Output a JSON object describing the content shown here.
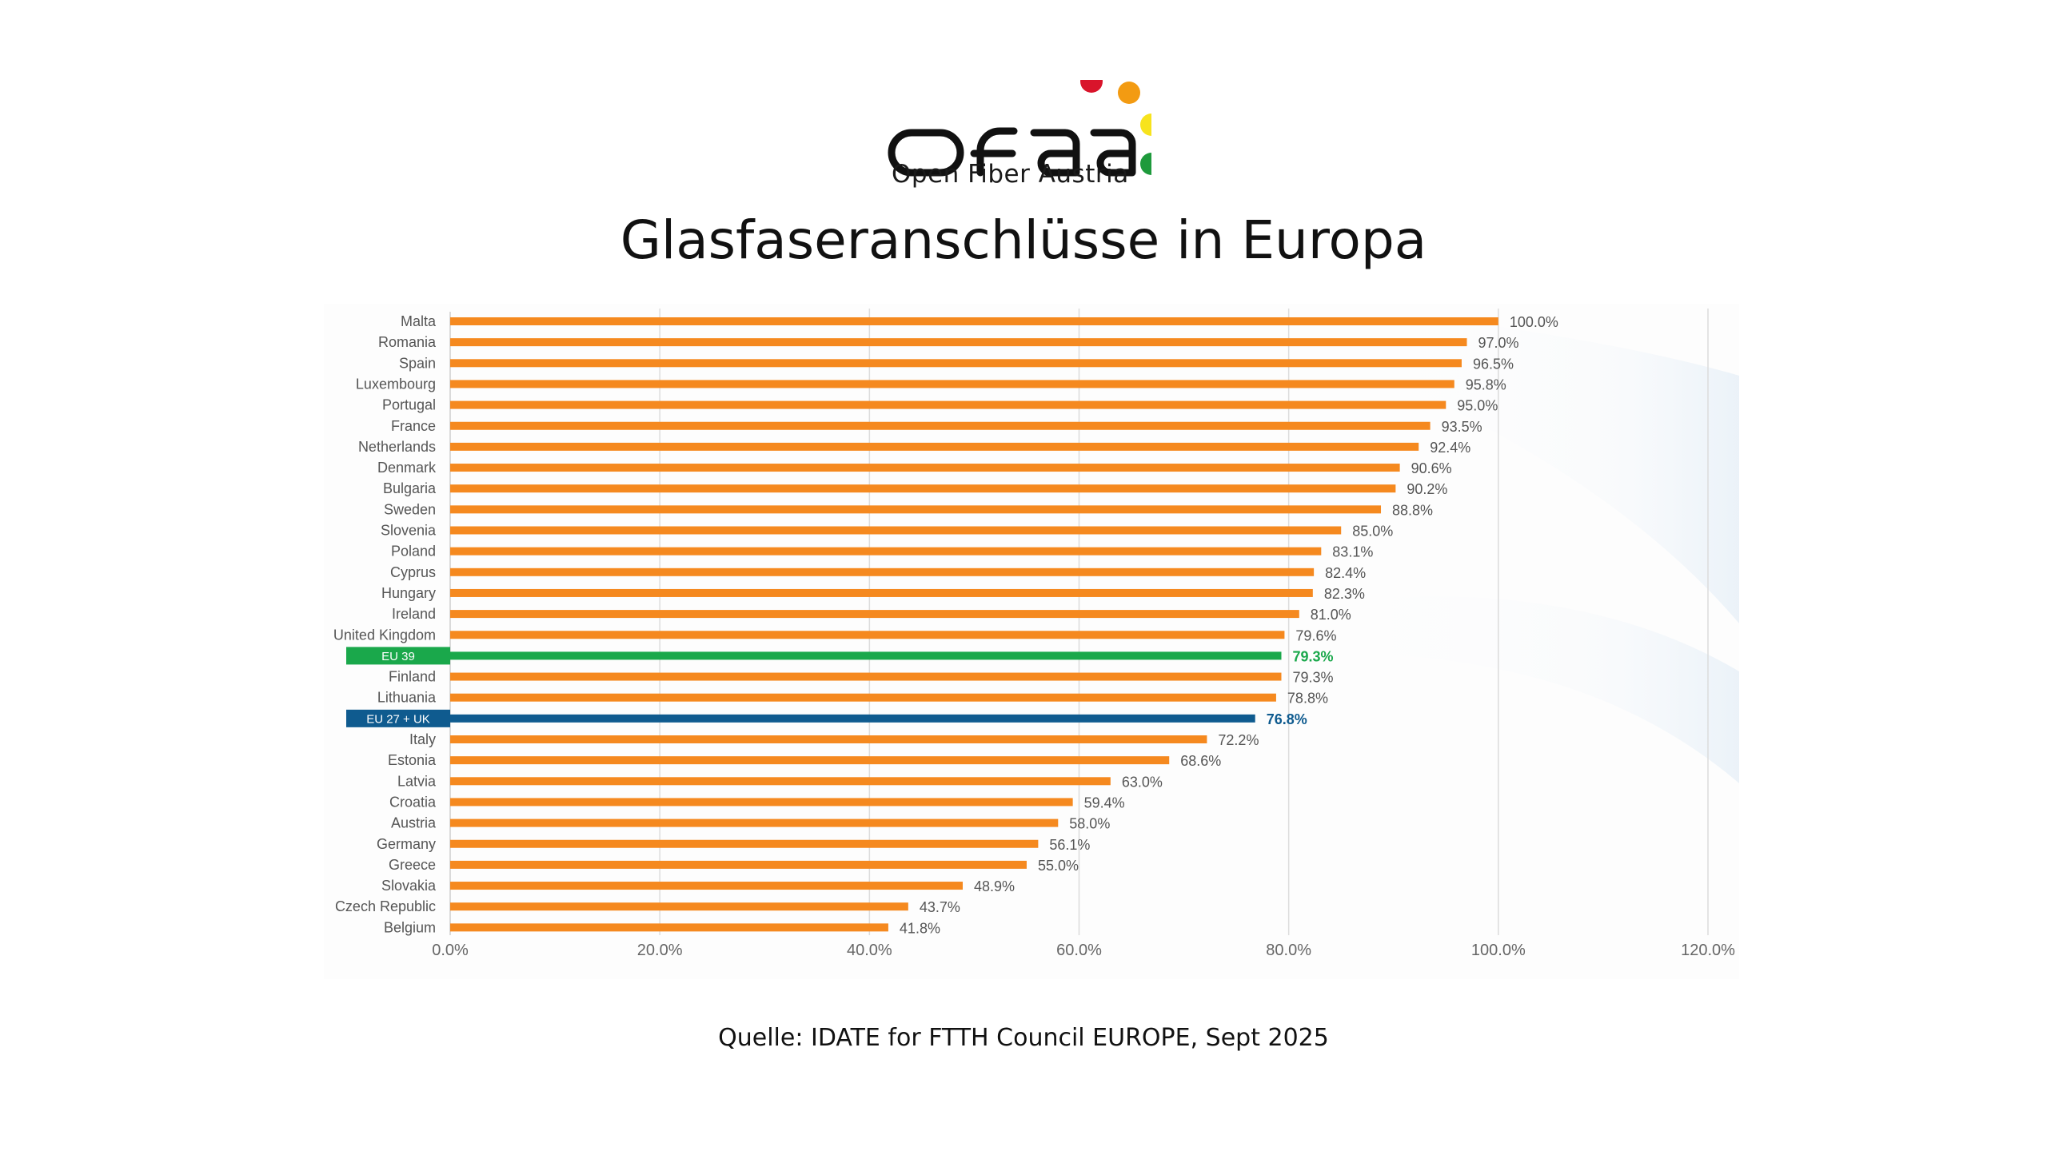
{
  "logo": {
    "wordmark": "ofaa",
    "tagline": "Open Fiber Austria",
    "dot_colors": [
      "#d9142b",
      "#f39b12",
      "#f7e31d",
      "#1e9a3c"
    ],
    "wordmark_color": "#111111"
  },
  "title": "Glasfaseranschlüsse in Europa",
  "source": "Quelle: IDATE for FTTH Council EUROPE, Sept 2025",
  "colors": {
    "bar_default": "#f5891f",
    "bar_eu39": "#1aa84b",
    "bar_eu27uk": "#0f5b8f",
    "gridline": "#dcdcdc",
    "text": "#555555"
  },
  "chart_data": {
    "type": "bar",
    "orientation": "horizontal",
    "title": "Glasfaseranschlüsse in Europa",
    "xlabel": "",
    "ylabel": "",
    "xlim": [
      0,
      120
    ],
    "x_ticks": [
      "0.0%",
      "20.0%",
      "40.0%",
      "60.0%",
      "80.0%",
      "100.0%",
      "120.0%"
    ],
    "x_tick_values": [
      0,
      20,
      40,
      60,
      80,
      100,
      120
    ],
    "grid": true,
    "categories": [
      "Malta",
      "Romania",
      "Spain",
      "Luxembourg",
      "Portugal",
      "France",
      "Netherlands",
      "Denmark",
      "Bulgaria",
      "Sweden",
      "Slovenia",
      "Poland",
      "Cyprus",
      "Hungary",
      "Ireland",
      "United Kingdom",
      "EU 39",
      "Finland",
      "Lithuania",
      "EU 27 + UK",
      "Italy",
      "Estonia",
      "Latvia",
      "Croatia",
      "Austria",
      "Germany",
      "Greece",
      "Slovakia",
      "Czech Republic",
      "Belgium"
    ],
    "values": [
      100.0,
      97.0,
      96.5,
      95.8,
      95.0,
      93.5,
      92.4,
      90.6,
      90.2,
      88.8,
      85.0,
      83.1,
      82.4,
      82.3,
      81.0,
      79.6,
      79.3,
      79.3,
      78.8,
      76.8,
      72.2,
      68.6,
      63.0,
      59.4,
      58.0,
      56.1,
      55.0,
      48.9,
      43.7,
      41.8
    ],
    "value_labels": [
      "100.0%",
      "97.0%",
      "96.5%",
      "95.8%",
      "95.0%",
      "93.5%",
      "92.4%",
      "90.6%",
      "90.2%",
      "88.8%",
      "85.0%",
      "83.1%",
      "82.4%",
      "82.3%",
      "81.0%",
      "79.6%",
      "79.3%",
      "79.3%",
      "78.8%",
      "76.8%",
      "72.2%",
      "68.6%",
      "63.0%",
      "59.4%",
      "58.0%",
      "56.1%",
      "55.0%",
      "48.9%",
      "43.7%",
      "41.8%"
    ],
    "highlights": {
      "EU 39": "eu39",
      "EU 27 + UK": "eu27uk"
    }
  }
}
